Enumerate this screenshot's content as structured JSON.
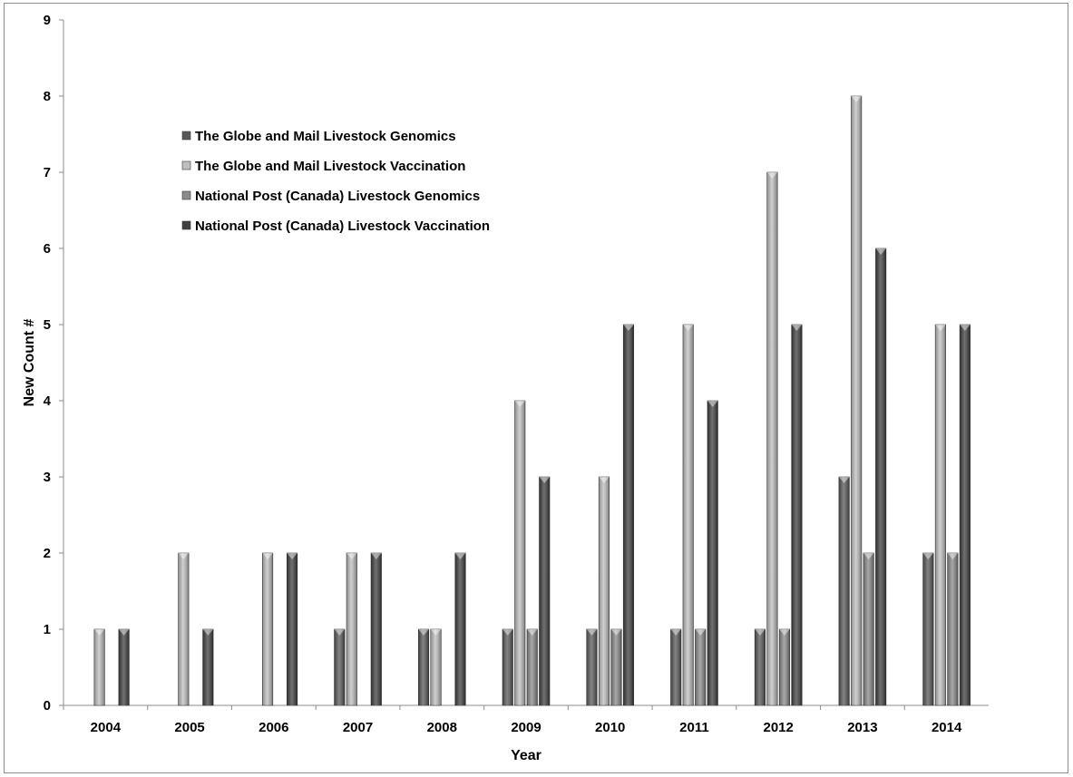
{
  "chart_data": {
    "type": "bar",
    "xlabel": "Year",
    "ylabel": "New Count #",
    "ylim": [
      0,
      9
    ],
    "yticks": [
      "0",
      "1",
      "2",
      "3",
      "4",
      "5",
      "6",
      "7",
      "8",
      "9"
    ],
    "categories": [
      "2004",
      "2005",
      "2006",
      "2007",
      "2008",
      "2009",
      "2010",
      "2011",
      "2012",
      "2013",
      "2014"
    ],
    "series": [
      {
        "name": "The Globe and Mail Livestock Genomics",
        "color": "#595959",
        "values": [
          0,
          0,
          0,
          1,
          1,
          1,
          1,
          1,
          1,
          3,
          2
        ]
      },
      {
        "name": "The Globe and Mail Livestock Vaccination",
        "color": "#bfbfbf",
        "values": [
          1,
          2,
          2,
          2,
          1,
          4,
          3,
          5,
          7,
          8,
          5
        ]
      },
      {
        "name": "National Post (Canada) Livestock Genomics",
        "color": "#8a8a8a",
        "values": [
          0,
          0,
          0,
          0,
          0,
          1,
          1,
          1,
          1,
          2,
          2
        ]
      },
      {
        "name": "National Post (Canada) Livestock Vaccination",
        "color": "#404040",
        "values": [
          1,
          1,
          2,
          2,
          2,
          3,
          5,
          4,
          5,
          6,
          5
        ]
      }
    ],
    "grid": false,
    "legend_position": "top-left"
  }
}
